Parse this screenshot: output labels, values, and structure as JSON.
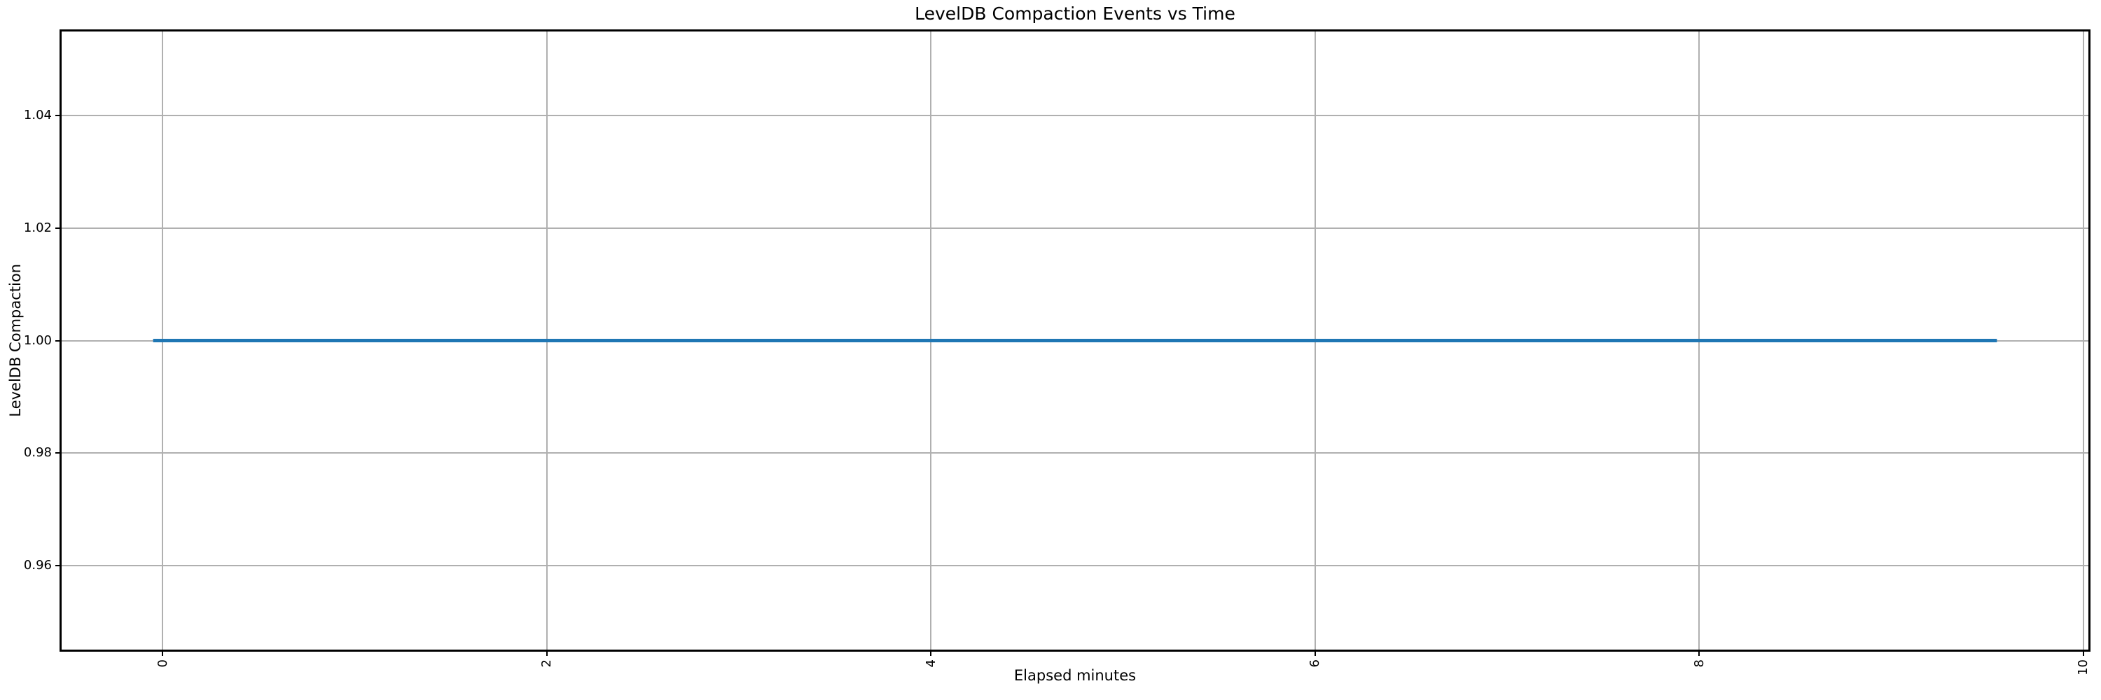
{
  "chart_data": {
    "type": "line",
    "title": "LevelDB Compaction Events vs Time",
    "xlabel": "Elapsed minutes",
    "ylabel": "LevelDB Compaction",
    "x_ticks": [
      0,
      2,
      4,
      6,
      8,
      10
    ],
    "x_tick_labels": [
      "0",
      "2",
      "4",
      "6",
      "8",
      "10"
    ],
    "x_tick_rotation": 90,
    "y_ticks": [
      0.96,
      0.98,
      1.0,
      1.02,
      1.04
    ],
    "y_tick_labels": [
      "0.96",
      "0.98",
      "1.00",
      "1.02",
      "1.04"
    ],
    "xlim": [
      -0.53,
      10.03
    ],
    "ylim": [
      0.945,
      1.055
    ],
    "grid": true,
    "legend": false,
    "background_color": "#ffffff",
    "grid_color": "#b0b0b0",
    "spine_color": "#000000",
    "tick_color": "#000000",
    "series": [
      {
        "name": "LevelDB Compaction",
        "color": "#1f77b4",
        "line_width": 5,
        "x": [
          -0.05,
          9.55
        ],
        "y": [
          1.0,
          1.0
        ]
      }
    ]
  }
}
